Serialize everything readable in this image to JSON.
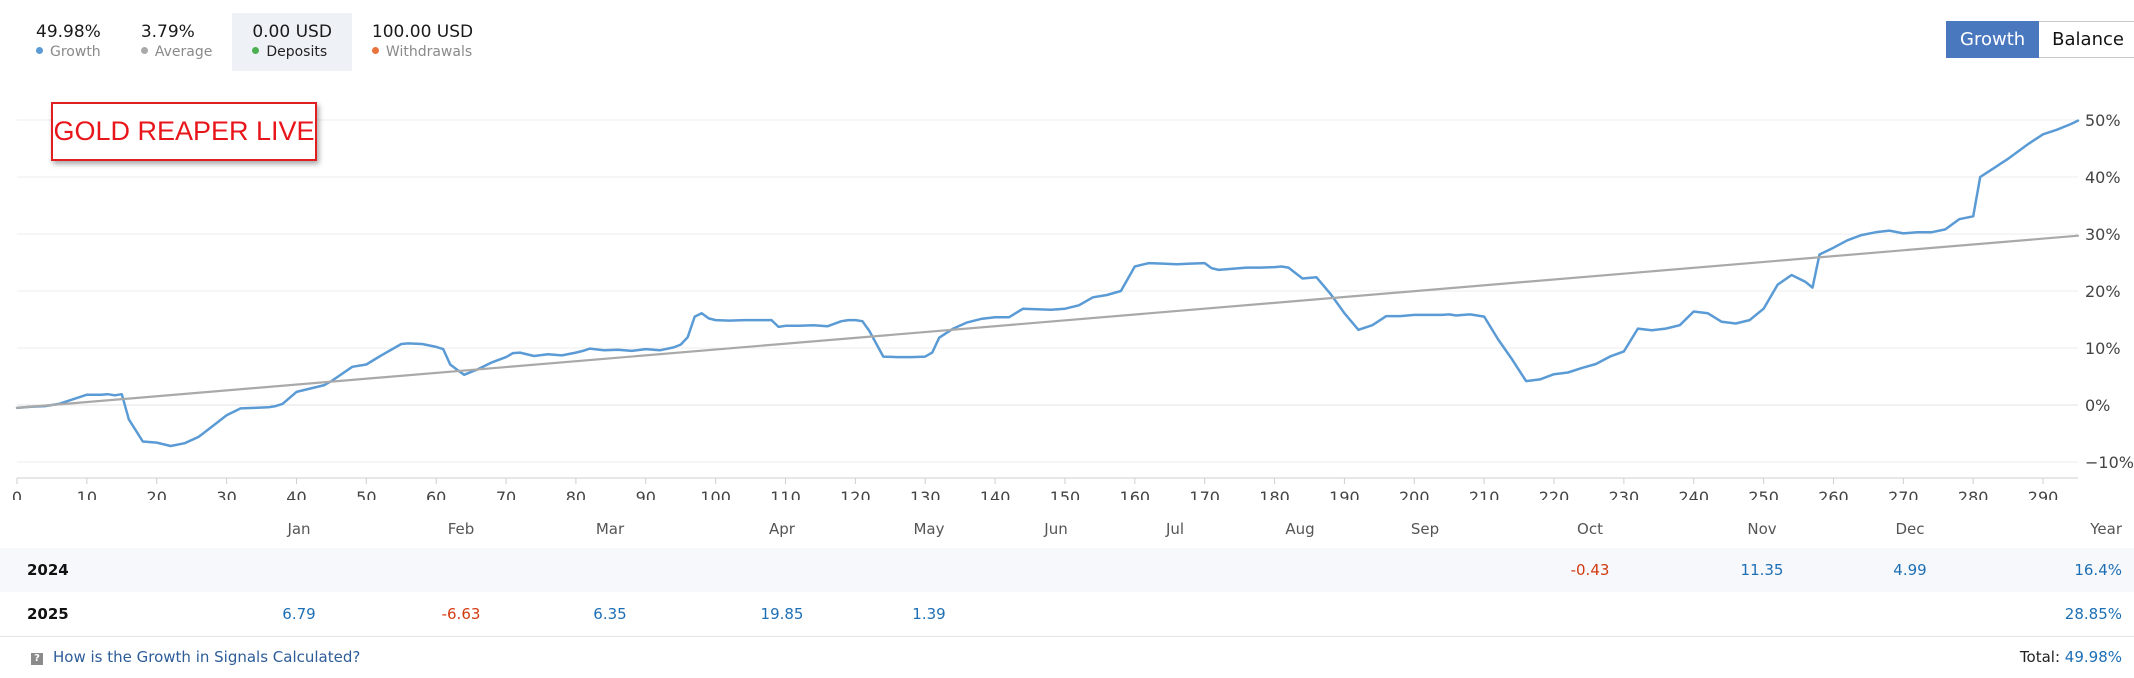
{
  "stats": [
    {
      "value": "49.98%",
      "label": "Growth",
      "color": "#5b9bd5"
    },
    {
      "value": "3.79%",
      "label": "Average",
      "color": "#a9a9a9"
    },
    {
      "value": "0.00 USD",
      "label": "Deposits",
      "color": "#4caf50"
    },
    {
      "value": "100.00 USD",
      "label": "Withdrawals",
      "color": "#e8743b"
    }
  ],
  "toggle": {
    "growth": "Growth",
    "balance": "Balance"
  },
  "chart_label": "GOLD REAPER LIVE",
  "chart_data": {
    "type": "line",
    "x_ticks": [
      "0",
      "10",
      "20",
      "30",
      "40",
      "50",
      "60",
      "70",
      "80",
      "90",
      "100",
      "110",
      "120",
      "130",
      "140",
      "150",
      "160",
      "170",
      "180",
      "190",
      "200",
      "210",
      "220",
      "230",
      "240",
      "250",
      "260",
      "270",
      "280",
      "290"
    ],
    "y_ticks": [
      "50%",
      "40%",
      "30%",
      "20%",
      "10%",
      "0%",
      "−10%"
    ],
    "xlim": [
      0,
      295
    ],
    "ylim": [
      -10,
      50
    ],
    "series": [
      {
        "color": "#5b9bd5",
        "x": [
          0,
          2,
          4,
          6,
          8,
          10,
          11,
          12,
          13,
          14,
          15,
          16,
          18,
          20,
          22,
          24,
          26,
          28,
          30,
          32,
          34,
          36,
          37,
          38,
          40,
          42,
          44,
          45,
          48,
          50,
          52,
          55,
          56,
          58,
          60,
          61,
          62,
          63,
          64,
          66,
          68,
          70,
          71,
          72,
          74,
          76,
          78,
          80,
          81,
          82,
          84,
          86,
          88,
          90,
          92,
          94,
          95,
          96,
          97,
          98,
          99,
          100,
          102,
          104,
          106,
          108,
          109,
          110,
          112,
          114,
          116,
          118,
          119,
          120,
          121,
          122,
          124,
          126,
          128,
          130,
          131,
          132,
          134,
          136,
          138,
          140,
          142,
          144,
          146,
          148,
          150,
          152,
          154,
          156,
          158,
          160,
          162,
          164,
          166,
          168,
          170,
          171,
          172,
          174,
          176,
          178,
          180,
          181,
          182,
          184,
          186,
          188,
          190,
          192,
          194,
          196,
          198,
          200,
          202,
          204,
          205,
          206,
          207,
          208,
          210,
          212,
          214,
          216,
          218,
          220,
          222,
          224,
          226,
          228,
          230,
          232,
          234,
          236,
          238,
          240,
          242,
          244,
          246,
          248,
          250,
          252,
          254,
          256,
          257,
          258,
          260,
          262,
          264,
          266,
          268,
          270,
          272,
          274,
          276,
          278,
          280,
          281,
          282,
          283,
          284,
          285,
          286,
          288,
          290,
          292,
          294,
          295
        ],
        "y": [
          -0.5,
          -0.3,
          -0.2,
          0.2,
          1.0,
          1.8,
          1.8,
          1.8,
          1.9,
          1.7,
          1.9,
          -2.5,
          -6.4,
          -6.6,
          -7.2,
          -6.7,
          -5.6,
          -3.7,
          -1.8,
          -0.6,
          -0.5,
          -0.4,
          -0.2,
          0.2,
          2.3,
          2.9,
          3.5,
          4.2,
          6.7,
          7.1,
          8.6,
          10.7,
          10.8,
          10.7,
          10.2,
          9.8,
          7.1,
          6.2,
          5.3,
          6.3,
          7.5,
          8.4,
          9.1,
          9.2,
          8.6,
          8.9,
          8.7,
          9.2,
          9.5,
          9.9,
          9.6,
          9.7,
          9.5,
          9.8,
          9.6,
          10.1,
          10.6,
          11.9,
          15.5,
          16.1,
          15.2,
          14.9,
          14.8,
          14.9,
          14.9,
          14.9,
          13.7,
          13.9,
          13.9,
          14.0,
          13.8,
          14.7,
          14.9,
          14.9,
          14.7,
          13.0,
          8.5,
          8.4,
          8.4,
          8.5,
          9.2,
          11.8,
          13.4,
          14.5,
          15.1,
          15.4,
          15.4,
          16.9,
          16.8,
          16.7,
          16.9,
          17.5,
          18.9,
          19.3,
          20.0,
          24.3,
          24.9,
          24.8,
          24.7,
          24.8,
          24.9,
          24.0,
          23.7,
          23.9,
          24.1,
          24.1,
          24.2,
          24.3,
          24.1,
          22.2,
          22.4,
          19.5,
          16.1,
          13.2,
          14.0,
          15.6,
          15.6,
          15.8,
          15.8,
          15.8,
          15.9,
          15.7,
          15.8,
          15.9,
          15.5,
          11.5,
          8.0,
          4.2,
          4.5,
          5.4,
          5.7,
          6.5,
          7.2,
          8.5,
          9.4,
          13.4,
          13.1,
          13.4,
          14.0,
          16.4,
          16.1,
          14.6,
          14.3,
          14.9,
          16.9,
          21.1,
          22.8,
          21.6,
          20.6,
          26.4,
          27.6,
          28.9,
          29.8,
          30.3,
          30.6,
          30.1,
          30.3,
          30.3,
          30.8,
          32.6,
          33.1,
          40.0,
          40.8,
          41.6,
          42.4,
          43.2,
          44.1,
          45.9,
          47.5,
          48.3,
          49.3,
          49.9
        ]
      },
      {
        "color": "#a9a9a9",
        "x": [
          0,
          295
        ],
        "y": [
          -0.5,
          29.7
        ]
      }
    ]
  },
  "months": [
    "Jan",
    "Feb",
    "Mar",
    "Apr",
    "May",
    "Jun",
    "Jul",
    "Aug",
    "Sep",
    "Oct",
    "Nov",
    "Dec",
    "Year"
  ],
  "years": [
    {
      "year": "2024",
      "values": [
        "",
        "",
        "",
        "",
        "",
        "",
        "",
        "",
        "",
        "-0.43",
        "11.35",
        "4.99"
      ],
      "total": "16.4%"
    },
    {
      "year": "2025",
      "values": [
        "6.79",
        "-6.63",
        "6.35",
        "19.85",
        "1.39",
        "",
        "",
        "",
        "",
        "",
        "",
        ""
      ],
      "total": "28.85%"
    }
  ],
  "footer": {
    "help_icon": "question-icon",
    "help_link": "How is the Growth in Signals Calculated?",
    "total_label": "Total:",
    "total_value": "49.98%"
  }
}
